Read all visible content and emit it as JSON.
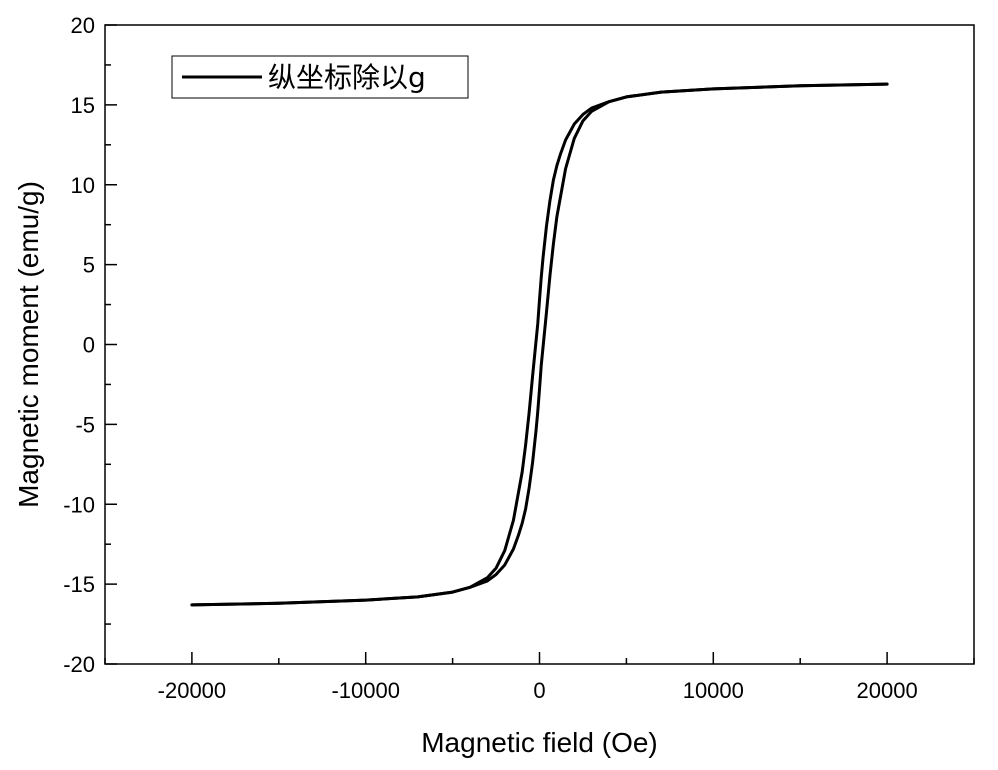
{
  "chart_data": {
    "type": "line",
    "xlabel": "Magnetic field (Oe)",
    "ylabel": "Magnetic moment (emu/g)",
    "xlim": [
      -25000,
      25000
    ],
    "ylim": [
      -20,
      20
    ],
    "x_ticks": [
      -20000,
      -10000,
      0,
      10000,
      20000
    ],
    "y_ticks": [
      -20,
      -15,
      -10,
      -5,
      0,
      5,
      10,
      15,
      20
    ],
    "legend_placement": "top-left",
    "grid": false,
    "series": [
      {
        "name": "纵坐标除以g",
        "color": "#000000",
        "branches": [
          {
            "direction": "descending",
            "x": [
              20000,
              15000,
              10000,
              7000,
              5000,
              4000,
              3000,
              2500,
              2000,
              1500,
              1200,
              1000,
              800,
              600,
              400,
              200,
              100,
              0,
              -100,
              -200,
              -400,
              -600,
              -800,
              -1000,
              -1500,
              -2000,
              -2500,
              -3000,
              -4000,
              -5000,
              -7000,
              -10000,
              -15000,
              -20000
            ],
            "y": [
              16.3,
              16.2,
              16.0,
              15.8,
              15.5,
              15.2,
              14.8,
              14.4,
              13.8,
              12.8,
              11.9,
              11.2,
              10.3,
              9.0,
              7.4,
              5.4,
              4.2,
              2.8,
              1.3,
              0.2,
              -2.0,
              -4.3,
              -6.3,
              -8.0,
              -11.0,
              -12.9,
              -14.0,
              -14.6,
              -15.2,
              -15.5,
              -15.8,
              -16.0,
              -16.2,
              -16.3
            ]
          },
          {
            "direction": "ascending",
            "x": [
              -20000,
              -15000,
              -10000,
              -7000,
              -5000,
              -4000,
              -3000,
              -2500,
              -2000,
              -1500,
              -1200,
              -1000,
              -800,
              -600,
              -400,
              -200,
              -100,
              0,
              100,
              200,
              400,
              600,
              800,
              1000,
              1500,
              2000,
              2500,
              3000,
              4000,
              5000,
              7000,
              10000,
              15000,
              20000
            ],
            "y": [
              -16.3,
              -16.2,
              -16.0,
              -15.8,
              -15.5,
              -15.2,
              -14.8,
              -14.4,
              -13.8,
              -12.8,
              -11.9,
              -11.2,
              -10.3,
              -9.0,
              -7.4,
              -5.4,
              -4.2,
              -2.8,
              -1.3,
              -0.2,
              2.0,
              4.3,
              6.3,
              8.0,
              11.0,
              12.9,
              14.0,
              14.6,
              15.2,
              15.5,
              15.8,
              16.0,
              16.2,
              16.3
            ]
          }
        ]
      }
    ]
  }
}
